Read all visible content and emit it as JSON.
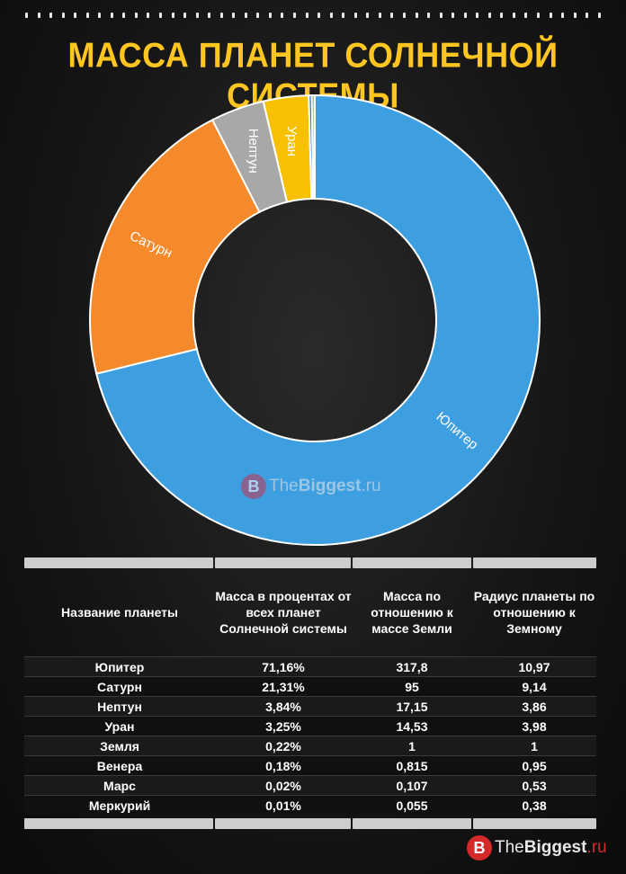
{
  "title": "МАССА ПЛАНЕТ СОЛНЕЧНОЙ СИСТЕМЫ",
  "watermark": {
    "logo": "B",
    "the": "The",
    "biggest": "Biggest",
    "ru": ".ru"
  },
  "chart_data": {
    "type": "pie",
    "donut": true,
    "title": "МАССА ПЛАНЕТ СОЛНЕЧНОЙ СИСТЕМЫ",
    "categories": [
      "Юпитер",
      "Сатурн",
      "Нептун",
      "Уран",
      "Земля",
      "Венера",
      "Марс",
      "Меркурий"
    ],
    "values": [
      71.16,
      21.31,
      3.84,
      3.25,
      0.22,
      0.18,
      0.02,
      0.01
    ],
    "colors": [
      "#3d9ee0",
      "#f58a2c",
      "#a8a8a8",
      "#f7c000",
      "#2f6fbf",
      "#4d8a3a",
      "#2a4f9a",
      "#8a4a1a"
    ],
    "labeled": [
      "Юпитер",
      "Сатурн",
      "Нептун",
      "Уран"
    ],
    "legend": "none"
  },
  "table": {
    "headers": [
      "Название планеты",
      "Масса в процентах от всех планет Солнечной системы",
      "Масса по отношению к массе Земли",
      "Радиус планеты по отношению к Земному"
    ],
    "rows": [
      [
        "Юпитер",
        "71,16%",
        "317,8",
        "10,97"
      ],
      [
        "Сатурн",
        "21,31%",
        "95",
        "9,14"
      ],
      [
        "Нептун",
        "3,84%",
        "17,15",
        "3,86"
      ],
      [
        "Уран",
        "3,25%",
        "14,53",
        "3,98"
      ],
      [
        "Земля",
        "0,22%",
        "1",
        "1"
      ],
      [
        "Венера",
        "0,18%",
        "0,815",
        "0,95"
      ],
      [
        "Марс",
        "0,02%",
        "0,107",
        "0,53"
      ],
      [
        "Меркурий",
        "0,01%",
        "0,055",
        "0,38"
      ]
    ]
  }
}
